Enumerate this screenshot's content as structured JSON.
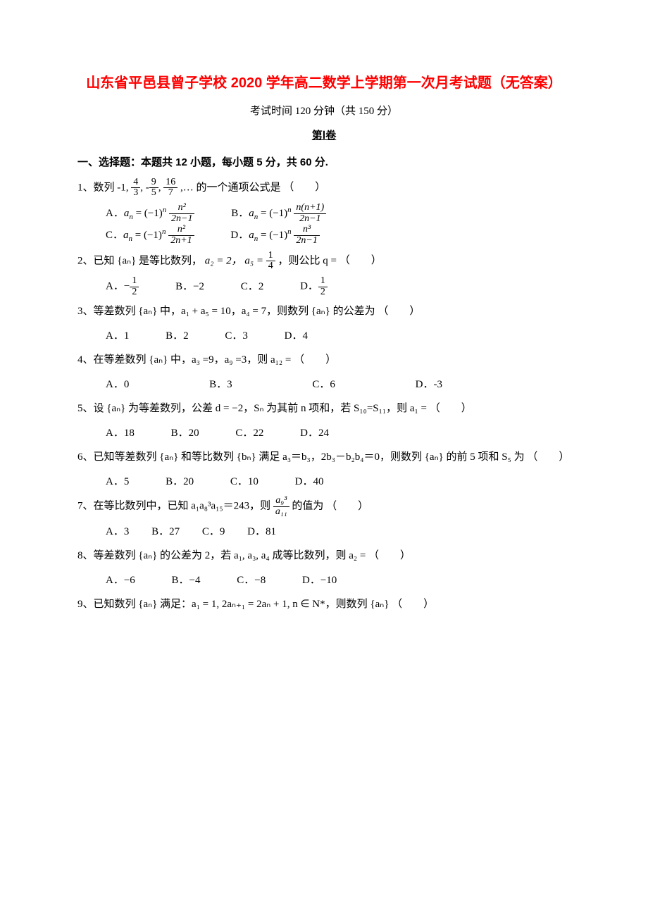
{
  "title": "山东省平邑县曾子学校 2020 学年高二数学上学期第一次月考试题（无答案）",
  "exam_time": "考试时间 120 分钟（共 150 分）",
  "juan": "第Ⅰ卷",
  "section1": "一、选择题：本题共 12 小题，每小题 5 分，共 60 分.",
  "blank": "（　　）",
  "q1": {
    "stem_pre": "1、数列 -1, ",
    "seq": [
      {
        "num": "4",
        "den": "3",
        "sign": ""
      },
      {
        "num": "9",
        "den": "5",
        "sign": "-"
      },
      {
        "num": "16",
        "den": "7",
        "sign": ""
      }
    ],
    "stem_post": ",… 的一个通项公式是",
    "A_label": "A．",
    "B_label": "B．",
    "C_label": "C．",
    "D_label": "D．",
    "A_num": "n²",
    "A_den": "2n−1",
    "B_num": "n(n+1)",
    "B_den": "2n−1",
    "C_num": "n²",
    "C_den": "2n+1",
    "D_num": "n³",
    "D_den": "2n−1"
  },
  "q2": {
    "stem_pre": "2、已知 {aₙ} 是等比数列，",
    "a2": "a₂ = 2，",
    "a5_pre": "a₅ = ",
    "a5_num": "1",
    "a5_den": "4",
    "stem_post": "，则公比 q =",
    "A_label": "A．",
    "A_val_num": "1",
    "A_val_den": "2",
    "A_sign": "−",
    "B_label": "B．",
    "B_val": "−2",
    "C_label": "C．",
    "C_val": "2",
    "D_label": "D．",
    "D_val_num": "1",
    "D_val_den": "2"
  },
  "q3": {
    "stem": "3、等差数列 {aₙ} 中，a₁ + a₅ = 10，a₄ = 7，则数列 {aₙ} 的公差为",
    "A": "A．1",
    "B": "B．2",
    "C": "C．3",
    "D": "D．4"
  },
  "q4": {
    "stem": "4、在等差数列 {aₙ} 中，a₃ =9，a₉ =3，则 a₁₂ =",
    "A": "A．0",
    "B": "B．3",
    "C": "C．6",
    "D": "D．-3"
  },
  "q5": {
    "stem": "5、设 {aₙ} 为等差数列，公差 d = −2，Sₙ 为其前 n 项和，若 S₁₀=S₁₁，则 a₁ =",
    "A": "A．18",
    "B": "B．20",
    "C": "C．22",
    "D": "D．24"
  },
  "q6": {
    "stem": "6、已知等差数列 {aₙ} 和等比数列 {bₙ} 满足 a₃＝b₃，2b₃－b₂b₄＝0，则数列 {aₙ} 的前 5 项和 S₅ 为",
    "A": "A．5",
    "B": "B．20",
    "C": "C．10",
    "D": "D．40"
  },
  "q7": {
    "stem_pre": "7、在等比数列中，已知 a₁a₈³a₁₅＝243，则 ",
    "num": "a₉³",
    "den": "a₁₁",
    "stem_post": " 的值为",
    "A": "A．3",
    "B": "B．27",
    "C": "C．9",
    "D": "D．81"
  },
  "q8": {
    "stem": "8、等差数列 {aₙ} 的公差为 2，若 a₁, a₃, a₄ 成等比数列，则 a₂ =",
    "A": "A．−6",
    "B": "B．−4",
    "C": "C．−8",
    "D": "D．−10"
  },
  "q9": {
    "stem": "9、已知数列 {aₙ} 满足：a₁ = 1, 2aₙ₊₁ = 2aₙ + 1, n ∈ N*，则数列 {aₙ}"
  }
}
